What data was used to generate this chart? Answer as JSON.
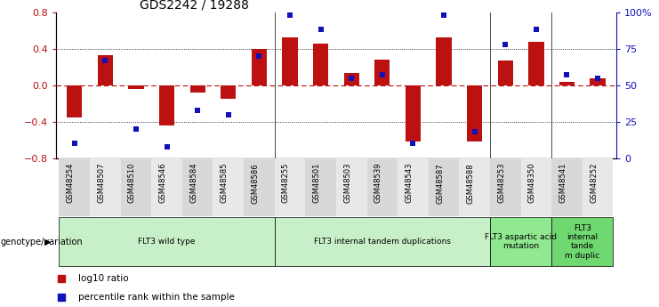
{
  "title": "GDS2242 / 19288",
  "samples": [
    "GSM48254",
    "GSM48507",
    "GSM48510",
    "GSM48546",
    "GSM48584",
    "GSM48585",
    "GSM48586",
    "GSM48255",
    "GSM48501",
    "GSM48503",
    "GSM48539",
    "GSM48543",
    "GSM48587",
    "GSM48588",
    "GSM48253",
    "GSM48350",
    "GSM48541",
    "GSM48252"
  ],
  "log10_ratio": [
    -0.35,
    0.33,
    -0.04,
    -0.44,
    -0.08,
    -0.15,
    0.4,
    0.52,
    0.46,
    0.13,
    0.28,
    -0.62,
    0.52,
    -0.62,
    0.27,
    0.48,
    0.04,
    0.08
  ],
  "percentile_rank": [
    10,
    67,
    20,
    8,
    33,
    30,
    70,
    98,
    88,
    55,
    57,
    10,
    98,
    18,
    78,
    88,
    57,
    55
  ],
  "groups": [
    {
      "label": "FLT3 wild type",
      "start": 0,
      "end": 7,
      "color": "#c8f0c8"
    },
    {
      "label": "FLT3 internal tandem duplications",
      "start": 7,
      "end": 14,
      "color": "#c8f0c8"
    },
    {
      "label": "FLT3 aspartic acid\nmutation",
      "start": 14,
      "end": 16,
      "color": "#90e890"
    },
    {
      "label": "FLT3\ninternal\ntande\nm duplic",
      "start": 16,
      "end": 18,
      "color": "#70d870"
    }
  ],
  "bar_color": "#bb1111",
  "dot_color": "#1111bb",
  "ylim_left": [
    -0.8,
    0.8
  ],
  "ylim_right": [
    0,
    100
  ],
  "yticks_left": [
    -0.8,
    -0.4,
    0.0,
    0.4,
    0.8
  ],
  "yticks_right": [
    0,
    25,
    50,
    75,
    100
  ],
  "ytick_labels_right": [
    "0",
    "25",
    "50",
    "75",
    "100%"
  ],
  "legend_bar_label": "log10 ratio",
  "legend_dot_label": "percentile rank within the sample",
  "group_label": "genotype/variation",
  "tick_bg_colors": [
    "#d8d8d8",
    "#e8e8e8"
  ]
}
